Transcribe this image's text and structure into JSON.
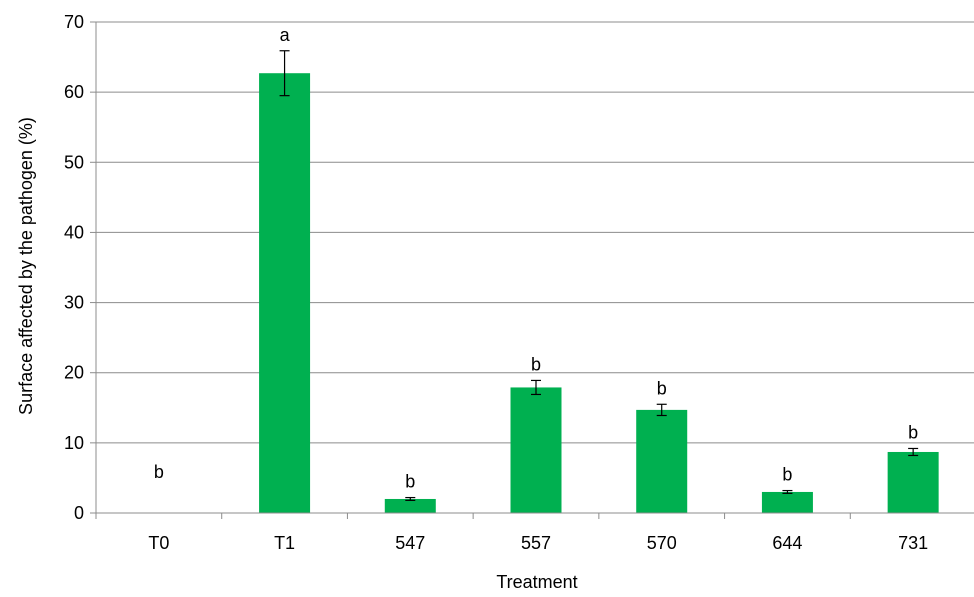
{
  "chart_data": {
    "type": "bar",
    "title": "",
    "xlabel": "Treatment",
    "ylabel": "Surface affected by the pathogen (%)",
    "ylim": [
      0,
      70
    ],
    "yticks": [
      0,
      10,
      20,
      30,
      40,
      50,
      60,
      70
    ],
    "grid": true,
    "legend": "none",
    "categories": [
      "T0",
      "T1",
      "547",
      "557",
      "570",
      "644",
      "731"
    ],
    "values": [
      0,
      62.7,
      2.0,
      17.9,
      14.7,
      3.0,
      8.7
    ],
    "errors": [
      0,
      3.2,
      0.2,
      1.0,
      0.8,
      0.2,
      0.5
    ],
    "significance": [
      "b",
      "a",
      "b",
      "b",
      "b",
      "b",
      "b"
    ],
    "colors": {
      "bar": "#00b050",
      "grid": "#8c8c8c",
      "axis": "#8c8c8c",
      "text": "#000000"
    }
  }
}
